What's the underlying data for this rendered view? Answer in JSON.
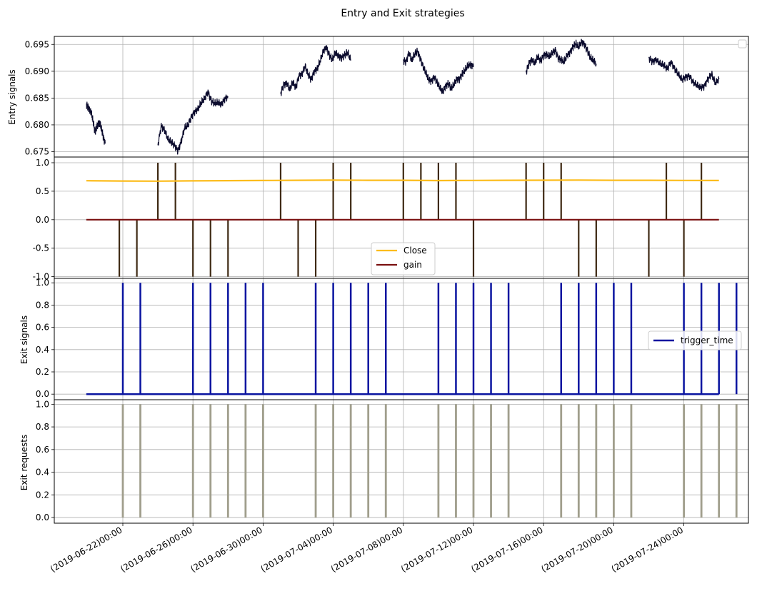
{
  "figure": {
    "title": "Entry and Exit strategies"
  },
  "chart_data": [
    {
      "type": "line",
      "ylabel": "Entry signals",
      "ylim": [
        0.674,
        0.6965
      ],
      "yticks": [
        0.675,
        0.68,
        0.685,
        0.69,
        0.695
      ],
      "grid": true,
      "legend": {
        "placement": "top-right",
        "entries": []
      },
      "x_dates": [
        "2019-06-22",
        "2019-06-26",
        "2019-06-30",
        "2019-07-04",
        "2019-07-08",
        "2019-07-12",
        "2019-07-16",
        "2019-07-20",
        "2019-07-24"
      ],
      "series": [
        {
          "color": "#0c0c2e",
          "segments": [
            {
              "start": "2019-06-19T22:00",
              "end": "2019-06-21T00:00",
              "points": [
                0.6838,
                0.6834,
                0.6828,
                0.6822,
                0.6806,
                0.6787,
                0.6797,
                0.6803,
                0.6802,
                0.679,
                0.6776,
                0.6765
              ]
            },
            {
              "start": "2019-06-24T00:00",
              "end": "2019-06-28T00:00",
              "points": [
                0.6762,
                0.6798,
                0.679,
                0.6774,
                0.6768,
                0.6762,
                0.6752,
                0.677,
                0.6795,
                0.68,
                0.6815,
                0.6825,
                0.683,
                0.6842,
                0.685,
                0.6862,
                0.6845,
                0.684,
                0.6842,
                0.6838,
                0.6848,
                0.6853
              ]
            },
            {
              "start": "2019-07-01T00:00",
              "end": "2019-07-05T00:00",
              "points": [
                0.6858,
                0.6875,
                0.6878,
                0.6866,
                0.688,
                0.687,
                0.6892,
                0.6895,
                0.691,
                0.6895,
                0.6885,
                0.69,
                0.6905,
                0.692,
                0.6938,
                0.6945,
                0.693,
                0.6922,
                0.6935,
                0.6928,
                0.6925,
                0.693,
                0.6935,
                0.692
              ]
            },
            {
              "start": "2019-07-08T00:00",
              "end": "2019-07-12T00:00",
              "points": [
                0.692,
                0.6918,
                0.6935,
                0.692,
                0.6932,
                0.6938,
                0.6925,
                0.691,
                0.6898,
                0.6885,
                0.6882,
                0.689,
                0.688,
                0.687,
                0.6862,
                0.6872,
                0.6878,
                0.6868,
                0.6875,
                0.6885,
                0.6885,
                0.6895,
                0.6902,
                0.691,
                0.6912,
                0.6908
              ]
            },
            {
              "start": "2019-07-15T00:00",
              "end": "2019-07-19T00:00",
              "points": [
                0.6898,
                0.6915,
                0.6922,
                0.6915,
                0.6928,
                0.692,
                0.693,
                0.6932,
                0.6928,
                0.6935,
                0.694,
                0.6925,
                0.6922,
                0.6918,
                0.693,
                0.6935,
                0.6945,
                0.6952,
                0.6945,
                0.6955,
                0.695,
                0.6938,
                0.6925,
                0.692,
                0.6914
              ]
            },
            {
              "start": "2019-07-22T00:00",
              "end": "2019-07-26T00:00",
              "points": [
                0.6925,
                0.6918,
                0.6922,
                0.6915,
                0.6912,
                0.6905,
                0.6918,
                0.6905,
                0.6895,
                0.6885,
                0.689,
                0.6892,
                0.688,
                0.6875,
                0.687,
                0.6872,
                0.6885,
                0.6895,
                0.6878,
                0.6885
              ]
            }
          ]
        }
      ]
    },
    {
      "type": "line",
      "ylabel": "",
      "ylim": [
        -1.03,
        1.1
      ],
      "yticks": [
        -1.0,
        -0.5,
        0.0,
        0.5,
        1.0
      ],
      "grid": true,
      "legend": {
        "placement": "lower-center",
        "entries": [
          "Close",
          "gain"
        ]
      },
      "series": [
        {
          "name": "Close",
          "color": "#fcbc1c",
          "start": "2019-06-19T22:00",
          "end": "2019-07-26T00:00",
          "values": [
            0.684,
            0.679,
            0.677,
            0.682,
            0.685,
            0.688,
            0.692,
            0.694,
            0.692,
            0.692,
            0.687,
            0.689,
            0.691,
            0.693,
            0.695,
            0.692,
            0.691,
            0.689,
            0.688
          ]
        },
        {
          "name": "gain",
          "color": "#7a1010",
          "baseline": 0.0,
          "start": "2019-06-19T22:00",
          "end": "2019-07-26T00:00",
          "spike_color": "#3f2a14",
          "pos_spikes_days": [
            2.0,
            3.0,
            9.0,
            12.0,
            13.0,
            16.0,
            17.0,
            18.0,
            19.0,
            23.0,
            24.0,
            25.0,
            31.0,
            33.0
          ],
          "neg_spikes_days": [
            -0.2,
            0.8,
            4.0,
            5.0,
            6.0,
            10.0,
            11.0,
            20.0,
            26.0,
            27.0,
            30.0,
            32.0
          ]
        }
      ]
    },
    {
      "type": "line",
      "ylabel": "Exit signals",
      "ylim": [
        -0.05,
        1.04
      ],
      "yticks": [
        0.0,
        0.2,
        0.4,
        0.6,
        0.8,
        1.0
      ],
      "grid": true,
      "legend": {
        "placement": "center-right",
        "entries": [
          "trigger_time"
        ]
      },
      "series": [
        {
          "name": "trigger_time",
          "color": "#0a14a0",
          "baseline": 0.0,
          "start": "2019-06-19T22:00",
          "end": "2019-07-26T00:00",
          "spikes_days": [
            0.0,
            1.0,
            4.0,
            5.0,
            6.0,
            7.0,
            8.0,
            11.0,
            12.0,
            13.0,
            14.0,
            15.0,
            18.0,
            19.0,
            20.0,
            21.0,
            22.0,
            25.0,
            26.0,
            27.0,
            28.0,
            29.0,
            32.0,
            33.0,
            34.0,
            35.0
          ]
        }
      ]
    },
    {
      "type": "bar",
      "ylabel": "Exit requests",
      "ylim": [
        -0.05,
        1.04
      ],
      "yticks": [
        0.0,
        0.2,
        0.4,
        0.6,
        0.8,
        1.0
      ],
      "grid": true,
      "series": [
        {
          "color": "#a09e8c",
          "bar_value": 1.0,
          "spikes_days": [
            0.0,
            1.0,
            4.0,
            5.0,
            6.0,
            7.0,
            8.0,
            11.0,
            12.0,
            13.0,
            14.0,
            15.0,
            18.0,
            19.0,
            20.0,
            21.0,
            22.0,
            25.0,
            26.0,
            27.0,
            28.0,
            29.0,
            32.0,
            33.0,
            34.0,
            35.0
          ]
        }
      ]
    }
  ],
  "xaxis": {
    "tick_labels": [
      "(2019-06-22)00:00",
      "(2019-06-26)00:00",
      "(2019-06-30)00:00",
      "(2019-07-04)00:00",
      "(2019-07-08)00:00",
      "(2019-07-12)00:00",
      "(2019-07-16)00:00",
      "(2019-07-20)00:00",
      "(2019-07-24)00:00"
    ]
  }
}
